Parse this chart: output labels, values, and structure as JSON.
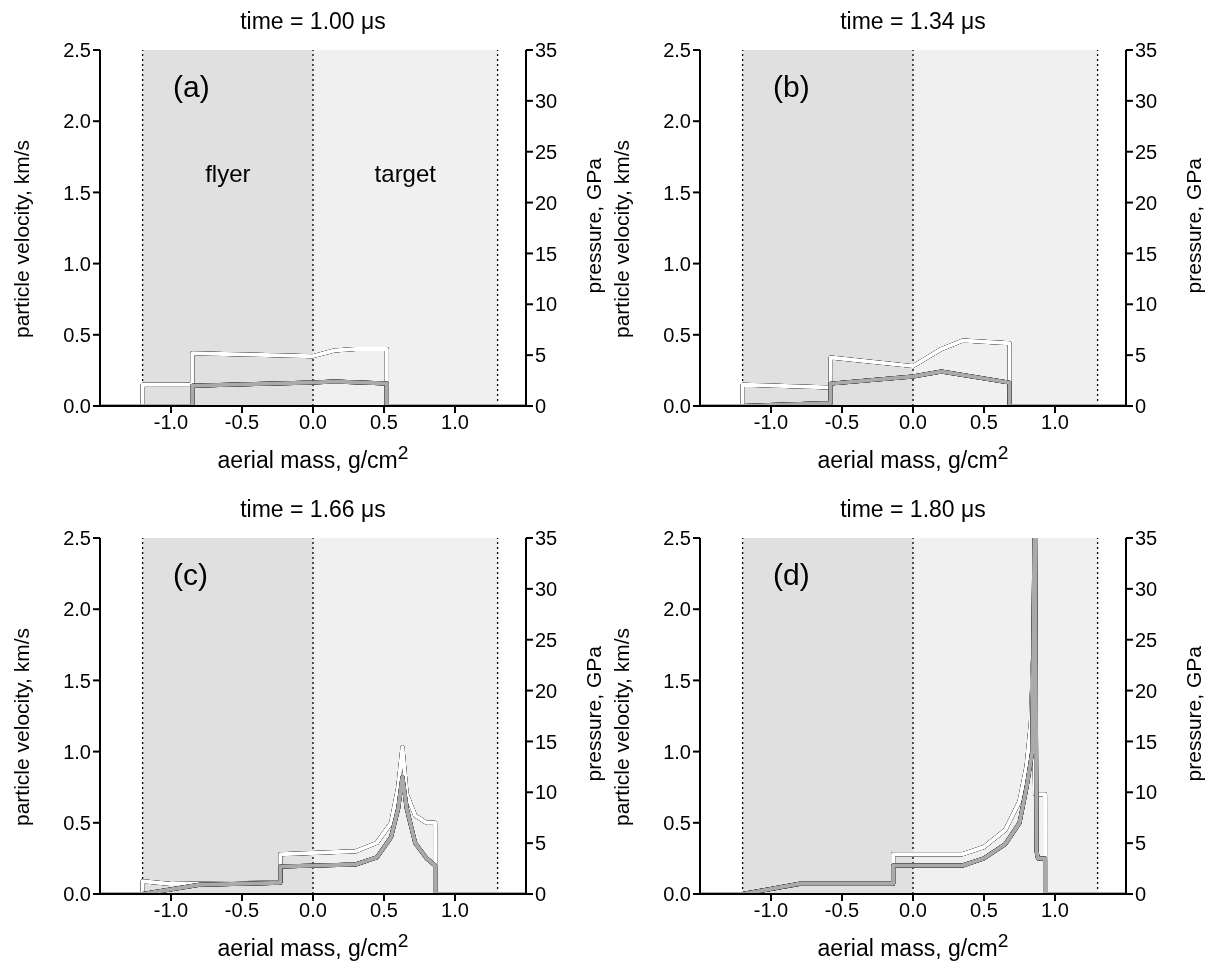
{
  "chart_data": [
    {
      "type": "line",
      "title": "time = 1.00 μs",
      "xlabel": "aerial mass, g/cm$^{2}$",
      "ylabel": "particle velocity, km/s",
      "y2label": "pressure, GPa",
      "annotations": [
        "(a)"
      ],
      "xlim": [
        -1.5,
        1.5
      ],
      "xticks": [
        {
          "value": -1,
          "label": "-1.0"
        },
        {
          "value": -0.5,
          "label": "-0.5"
        },
        {
          "value": 0,
          "label": "0.0"
        },
        {
          "value": 0.5,
          "label": "0.5"
        },
        {
          "value": 1,
          "label": "1.0"
        }
      ],
      "ylim": [
        0,
        2.5
      ],
      "yticks": [
        {
          "value": 0,
          "label": "0.0"
        },
        {
          "value": 0.5,
          "label": "0.5"
        },
        {
          "value": 1,
          "label": "1.0"
        },
        {
          "value": 1.5,
          "label": "1.5"
        },
        {
          "value": 2,
          "label": "2.0"
        },
        {
          "value": 2.5,
          "label": "2.5"
        }
      ],
      "y2lim": [
        0,
        35
      ],
      "y2ticks": [
        0,
        5,
        10,
        15,
        20,
        25,
        30,
        35
      ],
      "bands": [
        {
          "axis": "x",
          "from": -1.2,
          "to": 0,
          "label": "flyer",
          "color": "#e0e0e0"
        },
        {
          "axis": "x",
          "from": 0,
          "to": 1.3,
          "label": "target",
          "color": "#f0f0f0"
        }
      ],
      "ref_lines": [
        {
          "axis": "x",
          "value": -1.2,
          "color": "#000000",
          "line_style": "dotted"
        },
        {
          "axis": "x",
          "value": 0,
          "color": "#000000",
          "line_style": "dotted"
        },
        {
          "axis": "x",
          "value": 1.3,
          "color": "#000000",
          "line_style": "dotted"
        }
      ],
      "series": [
        {
          "color": "#ffffff",
          "x": [
            -1.5,
            -1.2,
            -1.2,
            -0.85,
            -0.85,
            -0.4,
            0,
            0.15,
            0.3,
            0.52,
            0.52,
            1.5
          ],
          "values": [
            0,
            0,
            0.15,
            0.15,
            0.37,
            0.36,
            0.35,
            0.39,
            0.4,
            0.4,
            0,
            0
          ]
        },
        {
          "color": "#aaaaaa",
          "axis": "y2",
          "x": [
            -1.5,
            -0.85,
            -0.85,
            0,
            0.15,
            0.52,
            0.52,
            1.5
          ],
          "values": [
            0,
            0,
            2,
            2.3,
            2.4,
            2.2,
            0,
            0
          ]
        }
      ]
    },
    {
      "type": "line",
      "title": "time = 1.34 μs",
      "xlabel": "aerial mass, g/cm$^{2}$",
      "ylabel": "particle velocity, km/s",
      "y2label": "pressure, GPa",
      "annotations": [
        "(b)"
      ],
      "xlim": [
        -1.5,
        1.5
      ],
      "xticks": [
        {
          "value": -1,
          "label": "-1.0"
        },
        {
          "value": -0.5,
          "label": "-0.5"
        },
        {
          "value": 0,
          "label": "0.0"
        },
        {
          "value": 0.5,
          "label": "0.5"
        },
        {
          "value": 1,
          "label": "1.0"
        }
      ],
      "ylim": [
        0,
        2.5
      ],
      "yticks": [
        {
          "value": 0,
          "label": "0.0"
        },
        {
          "value": 0.5,
          "label": "0.5"
        },
        {
          "value": 1,
          "label": "1.0"
        },
        {
          "value": 1.5,
          "label": "1.5"
        },
        {
          "value": 2,
          "label": "2.0"
        },
        {
          "value": 2.5,
          "label": "2.5"
        }
      ],
      "y2lim": [
        0,
        35
      ],
      "y2ticks": [
        0,
        5,
        10,
        15,
        20,
        25,
        30,
        35
      ],
      "bands": [
        {
          "axis": "x",
          "from": -1.2,
          "to": 0,
          "color": "#e0e0e0"
        },
        {
          "axis": "x",
          "from": 0,
          "to": 1.3,
          "color": "#f0f0f0"
        }
      ],
      "ref_lines": [
        {
          "axis": "x",
          "value": -1.2,
          "color": "#000000",
          "line_style": "dotted"
        },
        {
          "axis": "x",
          "value": 0,
          "color": "#000000",
          "line_style": "dotted"
        },
        {
          "axis": "x",
          "value": 1.3,
          "color": "#000000",
          "line_style": "dotted"
        }
      ],
      "series": [
        {
          "color": "#ffffff",
          "x": [
            -1.5,
            -1.2,
            -1.2,
            -0.58,
            -0.58,
            0,
            0.2,
            0.35,
            0.68,
            0.68,
            1.5
          ],
          "values": [
            0,
            0,
            0.15,
            0.13,
            0.34,
            0.28,
            0.4,
            0.46,
            0.44,
            0,
            0
          ]
        },
        {
          "color": "#aaaaaa",
          "axis": "y2",
          "x": [
            -1.5,
            -1.2,
            -0.58,
            -0.58,
            0,
            0.2,
            0.68,
            0.68,
            1.5
          ],
          "values": [
            0,
            0,
            0.3,
            2.2,
            2.9,
            3.4,
            2.3,
            0,
            0
          ]
        }
      ]
    },
    {
      "type": "line",
      "title": "time = 1.66 μs",
      "xlabel": "aerial mass, g/cm$^{2}$",
      "ylabel": "particle velocity, km/s",
      "y2label": "pressure, GPa",
      "annotations": [
        "(c)"
      ],
      "xlim": [
        -1.5,
        1.5
      ],
      "xticks": [
        {
          "value": -1,
          "label": "-1.0"
        },
        {
          "value": -0.5,
          "label": "-0.5"
        },
        {
          "value": 0,
          "label": "0.0"
        },
        {
          "value": 0.5,
          "label": "0.5"
        },
        {
          "value": 1,
          "label": "1.0"
        }
      ],
      "ylim": [
        0,
        2.5
      ],
      "yticks": [
        {
          "value": 0,
          "label": "0.0"
        },
        {
          "value": 0.5,
          "label": "0.5"
        },
        {
          "value": 1,
          "label": "1.0"
        },
        {
          "value": 1.5,
          "label": "1.5"
        },
        {
          "value": 2,
          "label": "2.0"
        },
        {
          "value": 2.5,
          "label": "2.5"
        }
      ],
      "y2lim": [
        0,
        35
      ],
      "y2ticks": [
        0,
        5,
        10,
        15,
        20,
        25,
        30,
        35
      ],
      "bands": [
        {
          "axis": "x",
          "from": -1.2,
          "to": 0,
          "color": "#e0e0e0"
        },
        {
          "axis": "x",
          "from": 0,
          "to": 1.3,
          "color": "#f0f0f0"
        }
      ],
      "ref_lines": [
        {
          "axis": "x",
          "value": -1.2,
          "color": "#000000",
          "line_style": "dotted"
        },
        {
          "axis": "x",
          "value": 0,
          "color": "#000000",
          "line_style": "dotted"
        },
        {
          "axis": "x",
          "value": 1.3,
          "color": "#000000",
          "line_style": "dotted"
        }
      ],
      "series": [
        {
          "color": "#ffffff",
          "x": [
            -1.5,
            -1.2,
            -1.2,
            -1.0,
            -0.23,
            -0.23,
            0.3,
            0.45,
            0.55,
            0.6,
            0.63,
            0.66,
            0.72,
            0.8,
            0.86,
            0.86,
            1.5
          ],
          "values": [
            0,
            0,
            0.09,
            0.07,
            0.08,
            0.28,
            0.3,
            0.36,
            0.5,
            0.75,
            1.03,
            0.7,
            0.55,
            0.5,
            0.5,
            0,
            0
          ]
        },
        {
          "color": "#aaaaaa",
          "axis": "y2",
          "x": [
            -1.5,
            -1.2,
            -0.8,
            -0.23,
            -0.23,
            0.3,
            0.45,
            0.55,
            0.6,
            0.63,
            0.66,
            0.72,
            0.8,
            0.86,
            0.86,
            1.5
          ],
          "values": [
            0,
            0,
            0.9,
            1.1,
            2.7,
            2.9,
            3.6,
            5.6,
            8.4,
            11.5,
            8.4,
            5,
            3.5,
            2.8,
            0,
            0
          ]
        }
      ]
    },
    {
      "type": "line",
      "title": "time = 1.80 μs",
      "xlabel": "aerial mass, g/cm$^{2}$",
      "ylabel": "particle velocity, km/s",
      "y2label": "pressure, GPa",
      "annotations": [
        "(d)"
      ],
      "xlim": [
        -1.5,
        1.5
      ],
      "xticks": [
        {
          "value": -1,
          "label": "-1.0"
        },
        {
          "value": -0.5,
          "label": "-0.5"
        },
        {
          "value": 0,
          "label": "0.0"
        },
        {
          "value": 0.5,
          "label": "0.5"
        },
        {
          "value": 1,
          "label": "1.0"
        }
      ],
      "ylim": [
        0,
        2.5
      ],
      "yticks": [
        {
          "value": 0,
          "label": "0.0"
        },
        {
          "value": 0.5,
          "label": "0.5"
        },
        {
          "value": 1,
          "label": "1.0"
        },
        {
          "value": 1.5,
          "label": "1.5"
        },
        {
          "value": 2,
          "label": "2.0"
        },
        {
          "value": 2.5,
          "label": "2.5"
        }
      ],
      "y2lim": [
        0,
        35
      ],
      "y2ticks": [
        0,
        5,
        10,
        15,
        20,
        25,
        30,
        35
      ],
      "bands": [
        {
          "axis": "x",
          "from": -1.2,
          "to": 0,
          "color": "#e0e0e0"
        },
        {
          "axis": "x",
          "from": 0,
          "to": 1.3,
          "color": "#f0f0f0"
        }
      ],
      "ref_lines": [
        {
          "axis": "x",
          "value": -1.2,
          "color": "#000000",
          "line_style": "dotted"
        },
        {
          "axis": "x",
          "value": 0,
          "color": "#000000",
          "line_style": "dotted"
        },
        {
          "axis": "x",
          "value": 1.3,
          "color": "#000000",
          "line_style": "dotted"
        }
      ],
      "series": [
        {
          "color": "#ffffff",
          "x": [
            -1.5,
            -1.2,
            -0.8,
            -0.14,
            -0.14,
            0.35,
            0.5,
            0.65,
            0.75,
            0.8,
            0.83,
            0.845,
            0.86,
            0.93,
            0.93,
            1.5
          ],
          "values": [
            0,
            0,
            0.07,
            0.07,
            0.28,
            0.28,
            0.33,
            0.45,
            0.65,
            0.9,
            1.2,
            1.65,
            0.7,
            0.7,
            0,
            0
          ]
        },
        {
          "color": "#aaaaaa",
          "axis": "y2",
          "x": [
            -1.5,
            -1.2,
            -0.8,
            -0.14,
            -0.14,
            0.35,
            0.5,
            0.65,
            0.75,
            0.8,
            0.84,
            0.855,
            0.86,
            0.87,
            0.88,
            0.93,
            0.93,
            1.5
          ],
          "values": [
            0,
            0,
            1,
            1,
            2.8,
            2.8,
            3.5,
            4.9,
            7,
            10.5,
            14,
            35,
            35,
            4.2,
            3.5,
            3.5,
            0,
            0
          ]
        }
      ]
    }
  ]
}
